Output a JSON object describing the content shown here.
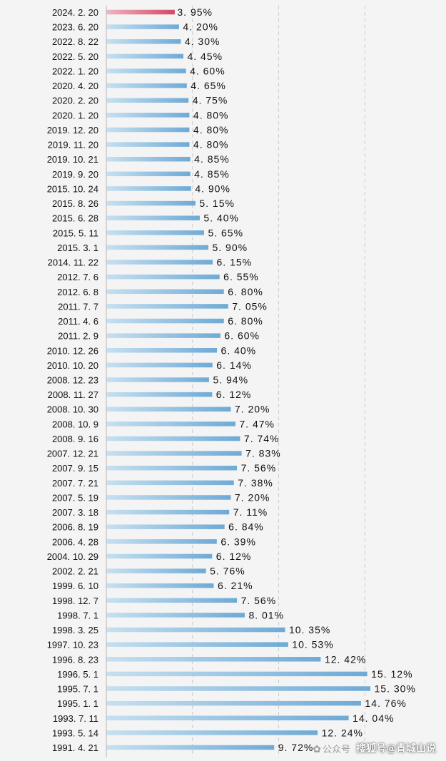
{
  "chart_data": {
    "type": "bar",
    "orientation": "horizontal",
    "categories": [
      "2024.2.20",
      "2023.6.20",
      "2022.8.22",
      "2022.5.20",
      "2022.1.20",
      "2020.4.20",
      "2020.2.20",
      "2020.1.20",
      "2019.12.20",
      "2019.11.20",
      "2019.10.21",
      "2019.9.20",
      "2015.10.24",
      "2015.8.26",
      "2015.6.28",
      "2015.5.11",
      "2015.3.1",
      "2014.11.22",
      "2012.7.6",
      "2012.6.8",
      "2011.7.7",
      "2011.4.6",
      "2011.2.9",
      "2010.12.26",
      "2010.10.20",
      "2008.12.23",
      "2008.11.27",
      "2008.10.30",
      "2008.10.9",
      "2008.9.16",
      "2007.12.21",
      "2007.9.15",
      "2007.7.21",
      "2007.5.19",
      "2007.3.18",
      "2006.8.19",
      "2006.4.28",
      "2004.10.29",
      "2002.2.21",
      "1999.6.10",
      "1998.12.7",
      "1998.7.1",
      "1998.3.25",
      "1997.10.23",
      "1996.8.23",
      "1996.5.1",
      "1995.7.1",
      "1995.1.1",
      "1993.7.11",
      "1993.5.14",
      "1991.4.21"
    ],
    "category_labels": [
      "2024. 2. 20",
      "2023. 6. 20",
      "2022. 8. 22",
      "2022. 5. 20",
      "2022. 1. 20",
      "2020. 4. 20",
      "2020. 2. 20",
      "2020. 1. 20",
      "2019. 12. 20",
      "2019. 11. 20",
      "2019. 10. 21",
      "2019. 9. 20",
      "2015. 10. 24",
      "2015. 8. 26",
      "2015. 6. 28",
      "2015. 5. 11",
      "2015. 3. 1",
      "2014. 11. 22",
      "2012. 7. 6",
      "2012. 6. 8",
      "2011. 7. 7",
      "2011. 4. 6",
      "2011. 2. 9",
      "2010. 12. 26",
      "2010. 10. 20",
      "2008. 12. 23",
      "2008. 11. 27",
      "2008. 10. 30",
      "2008. 10. 9",
      "2008. 9. 16",
      "2007. 12. 21",
      "2007. 9. 15",
      "2007. 7. 21",
      "2007. 5. 19",
      "2007. 3. 18",
      "2006. 8. 19",
      "2006. 4. 28",
      "2004. 10. 29",
      "2002. 2. 21",
      "1999. 6. 10",
      "1998. 12. 7",
      "1998. 7. 1",
      "1998. 3. 25",
      "1997. 10. 23",
      "1996. 8. 23",
      "1996. 5. 1",
      "1995. 7. 1",
      "1995. 1. 1",
      "1993. 7. 11",
      "1993. 5. 14",
      "1991. 4. 21"
    ],
    "values": [
      3.95,
      4.2,
      4.3,
      4.45,
      4.6,
      4.65,
      4.75,
      4.8,
      4.8,
      4.8,
      4.85,
      4.85,
      4.9,
      5.15,
      5.4,
      5.65,
      5.9,
      6.15,
      6.55,
      6.8,
      7.05,
      6.8,
      6.6,
      6.4,
      6.14,
      5.94,
      6.12,
      7.2,
      7.47,
      7.74,
      7.83,
      7.56,
      7.38,
      7.2,
      7.11,
      6.84,
      6.39,
      6.12,
      5.76,
      6.21,
      7.56,
      8.01,
      10.35,
      10.53,
      12.42,
      15.12,
      15.3,
      14.76,
      14.04,
      12.24,
      9.72
    ],
    "value_labels": [
      "3. 95%",
      "4. 20%",
      "4. 30%",
      "4. 45%",
      "4. 60%",
      "4. 65%",
      "4. 75%",
      "4. 80%",
      "4. 80%",
      "4. 80%",
      "4. 85%",
      "4. 85%",
      "4. 90%",
      "5. 15%",
      "5. 40%",
      "5. 65%",
      "5. 90%",
      "6. 15%",
      "6. 55%",
      "6. 80%",
      "7. 05%",
      "6. 80%",
      "6. 60%",
      "6. 40%",
      "6. 14%",
      "5. 94%",
      "6. 12%",
      "7. 20%",
      "7. 47%",
      "7. 74%",
      "7. 83%",
      "7. 56%",
      "7. 38%",
      "7. 20%",
      "7. 11%",
      "6. 84%",
      "6. 39%",
      "6. 12%",
      "5. 76%",
      "6. 21%",
      "7. 56%",
      "8. 01%",
      "10. 35%",
      "10. 53%",
      "12. 42%",
      "15. 12%",
      "15. 30%",
      "14. 76%",
      "14. 04%",
      "12. 24%",
      "9. 72%"
    ],
    "highlight_index": 0,
    "unit": "%",
    "xlim": [
      0,
      16
    ],
    "gridlines_at": [
      5,
      10,
      15
    ],
    "grid": "vertical dashed",
    "legend": "none",
    "title": "",
    "xlabel": "",
    "ylabel": "",
    "colors": {
      "bar_start": "#c6e0f0",
      "bar_end": "#6eaad6",
      "highlight_start": "#f0b4c0",
      "highlight_end": "#d14a66",
      "gridline": "#cccccc",
      "axis_line": "#b8b8b8",
      "background": "#f4f4f4"
    }
  },
  "watermark": {
    "logo_icon": "wechat-icon",
    "logo_glyph": "✿",
    "logo_text": "公众号",
    "source_text": "搜狐号@青城山说"
  }
}
